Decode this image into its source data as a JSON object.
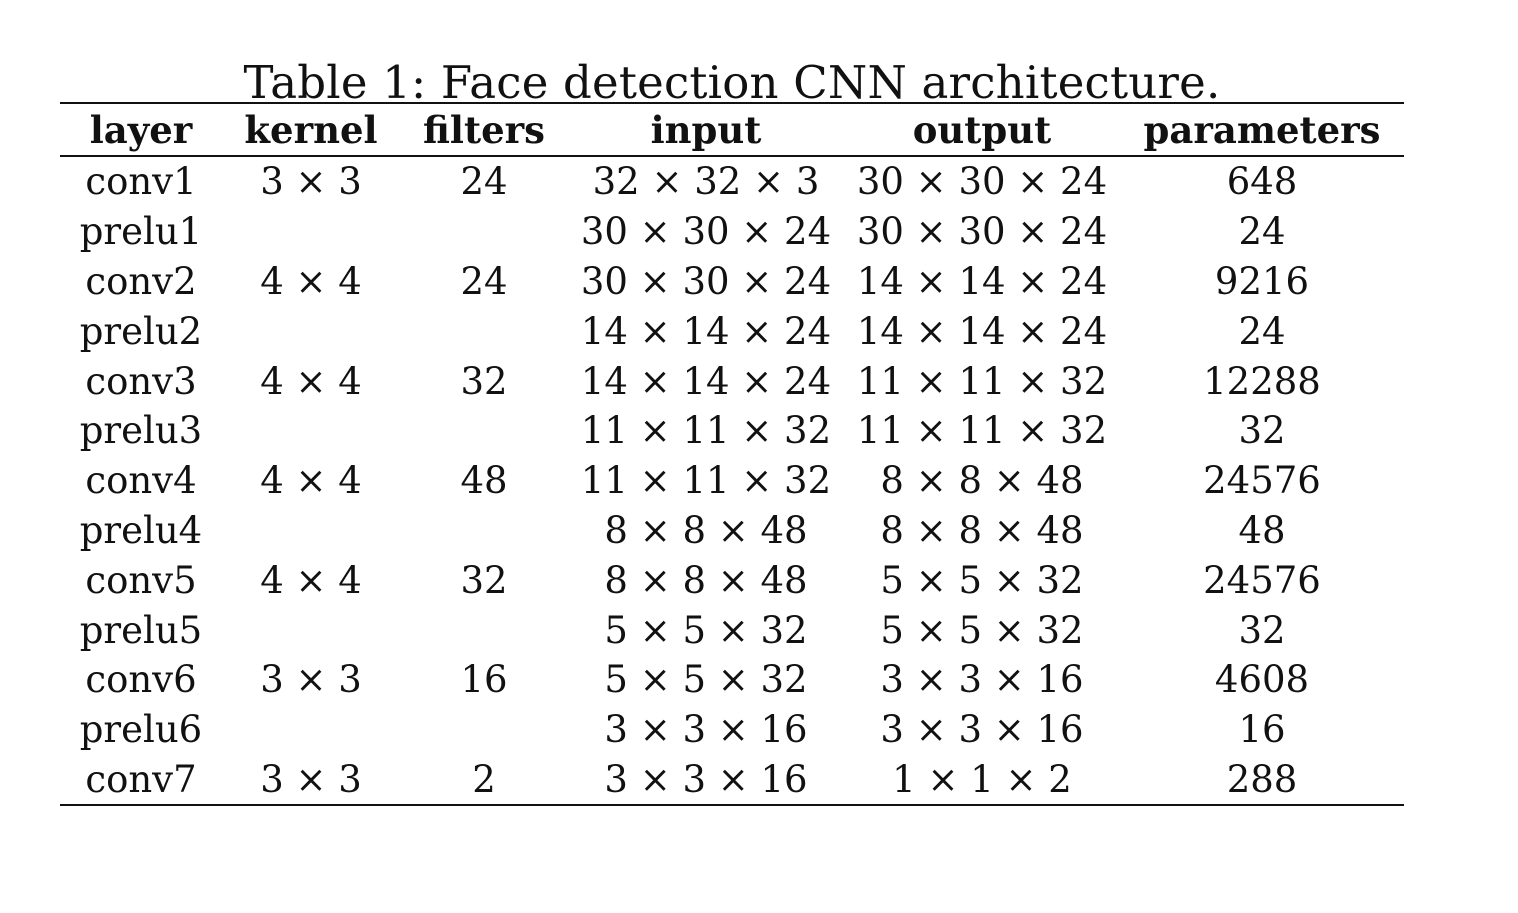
{
  "caption": "Table 1: Face detection CNN architecture.",
  "headers": [
    "layer",
    "kernel",
    "filters",
    "input",
    "output",
    "parameters"
  ],
  "rows": [
    [
      "conv1",
      "3 × 3",
      "24",
      "32 × 32 × 3",
      "30 × 30 × 24",
      "648"
    ],
    [
      "prelu1",
      "",
      "",
      "30 × 30 × 24",
      "30 × 30 × 24",
      "24"
    ],
    [
      "conv2",
      "4 × 4",
      "24",
      "30 × 30 × 24",
      "14 × 14 × 24",
      "9216"
    ],
    [
      "prelu2",
      "",
      "",
      "14 × 14 × 24",
      "14 × 14 × 24",
      "24"
    ],
    [
      "conv3",
      "4 × 4",
      "32",
      "14 × 14 × 24",
      "11 × 11 × 32",
      "12288"
    ],
    [
      "prelu3",
      "",
      "",
      "11 × 11 × 32",
      "11 × 11 × 32",
      "32"
    ],
    [
      "conv4",
      "4 × 4",
      "48",
      "11 × 11 × 32",
      "8 × 8 × 48",
      "24576"
    ],
    [
      "prelu4",
      "",
      "",
      "8 × 8 × 48",
      "8 × 8 × 48",
      "48"
    ],
    [
      "conv5",
      "4 × 4",
      "32",
      "8 × 8 × 48",
      "5 × 5 × 32",
      "24576"
    ],
    [
      "prelu5",
      "",
      "",
      "5 × 5 × 32",
      "5 × 5 × 32",
      "32"
    ],
    [
      "conv6",
      "3 × 3",
      "16",
      "5 × 5 × 32",
      "3 × 3 × 16",
      "4608"
    ],
    [
      "prelu6",
      "",
      "",
      "3 × 3 × 16",
      "3 × 3 × 16",
      "16"
    ],
    [
      "conv7",
      "3 × 3",
      "2",
      "3 × 3 × 16",
      "1 × 1 × 2",
      "288"
    ]
  ]
}
